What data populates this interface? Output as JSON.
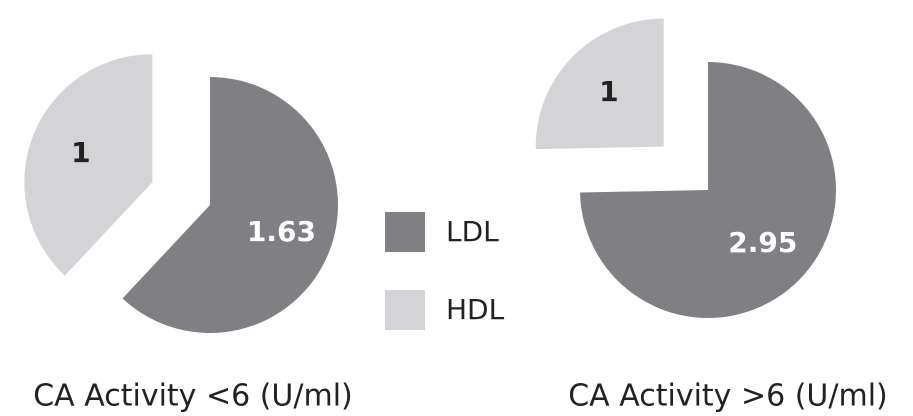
{
  "chart_data": [
    {
      "type": "pie",
      "title": "CA Activity <6 (U/ml)",
      "categories": [
        "LDL",
        "HDL"
      ],
      "values": [
        1.63,
        1
      ],
      "colors": [
        "#808084",
        "#d4d4d6"
      ],
      "explode": "HDL"
    },
    {
      "type": "pie",
      "title": "CA Activity >6 (U/ml)",
      "categories": [
        "LDL",
        "HDL"
      ],
      "values": [
        2.95,
        1
      ],
      "colors": [
        "#808084",
        "#d4d4d6"
      ],
      "explode": "HDL"
    }
  ]
}
